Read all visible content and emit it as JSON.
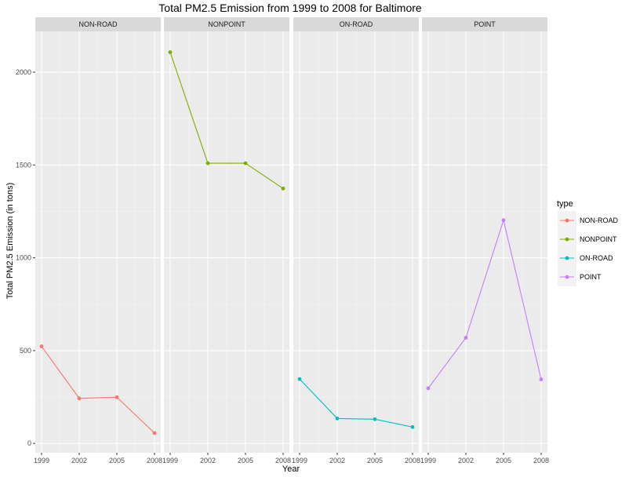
{
  "chart_data": {
    "type": "line",
    "title": "Total PM2.5 Emission from 1999 to 2008 for Baltimore",
    "xlabel": "Year",
    "ylabel": "Total PM2.5 Emission (in tons)",
    "x": [
      1999,
      2002,
      2005,
      2008
    ],
    "x_ticks": [
      "1999",
      "2002",
      "2005",
      "2008"
    ],
    "y_ticks": [
      0,
      500,
      1000,
      1500,
      2000
    ],
    "ylim": [
      -50,
      2220
    ],
    "grid": true,
    "legend": {
      "title": "type",
      "position": "right",
      "entries": [
        "NON-ROAD",
        "NONPOINT",
        "ON-ROAD",
        "POINT"
      ]
    },
    "facets": [
      "NON-ROAD",
      "NONPOINT",
      "ON-ROAD",
      "POINT"
    ],
    "series": [
      {
        "name": "NON-ROAD",
        "color": "#F8766D",
        "values": [
          522.94,
          242.69,
          248.93,
          55.82
        ]
      },
      {
        "name": "NONPOINT",
        "color": "#7CAE00",
        "values": [
          2107.63,
          1509.5,
          1509.5,
          1373.21
        ]
      },
      {
        "name": "ON-ROAD",
        "color": "#00BFC4",
        "values": [
          346.82,
          134.31,
          130.43,
          88.28
        ]
      },
      {
        "name": "POINT",
        "color": "#C77CFF",
        "values": [
          296.8,
          569.26,
          1202.49,
          344.98
        ]
      }
    ]
  }
}
